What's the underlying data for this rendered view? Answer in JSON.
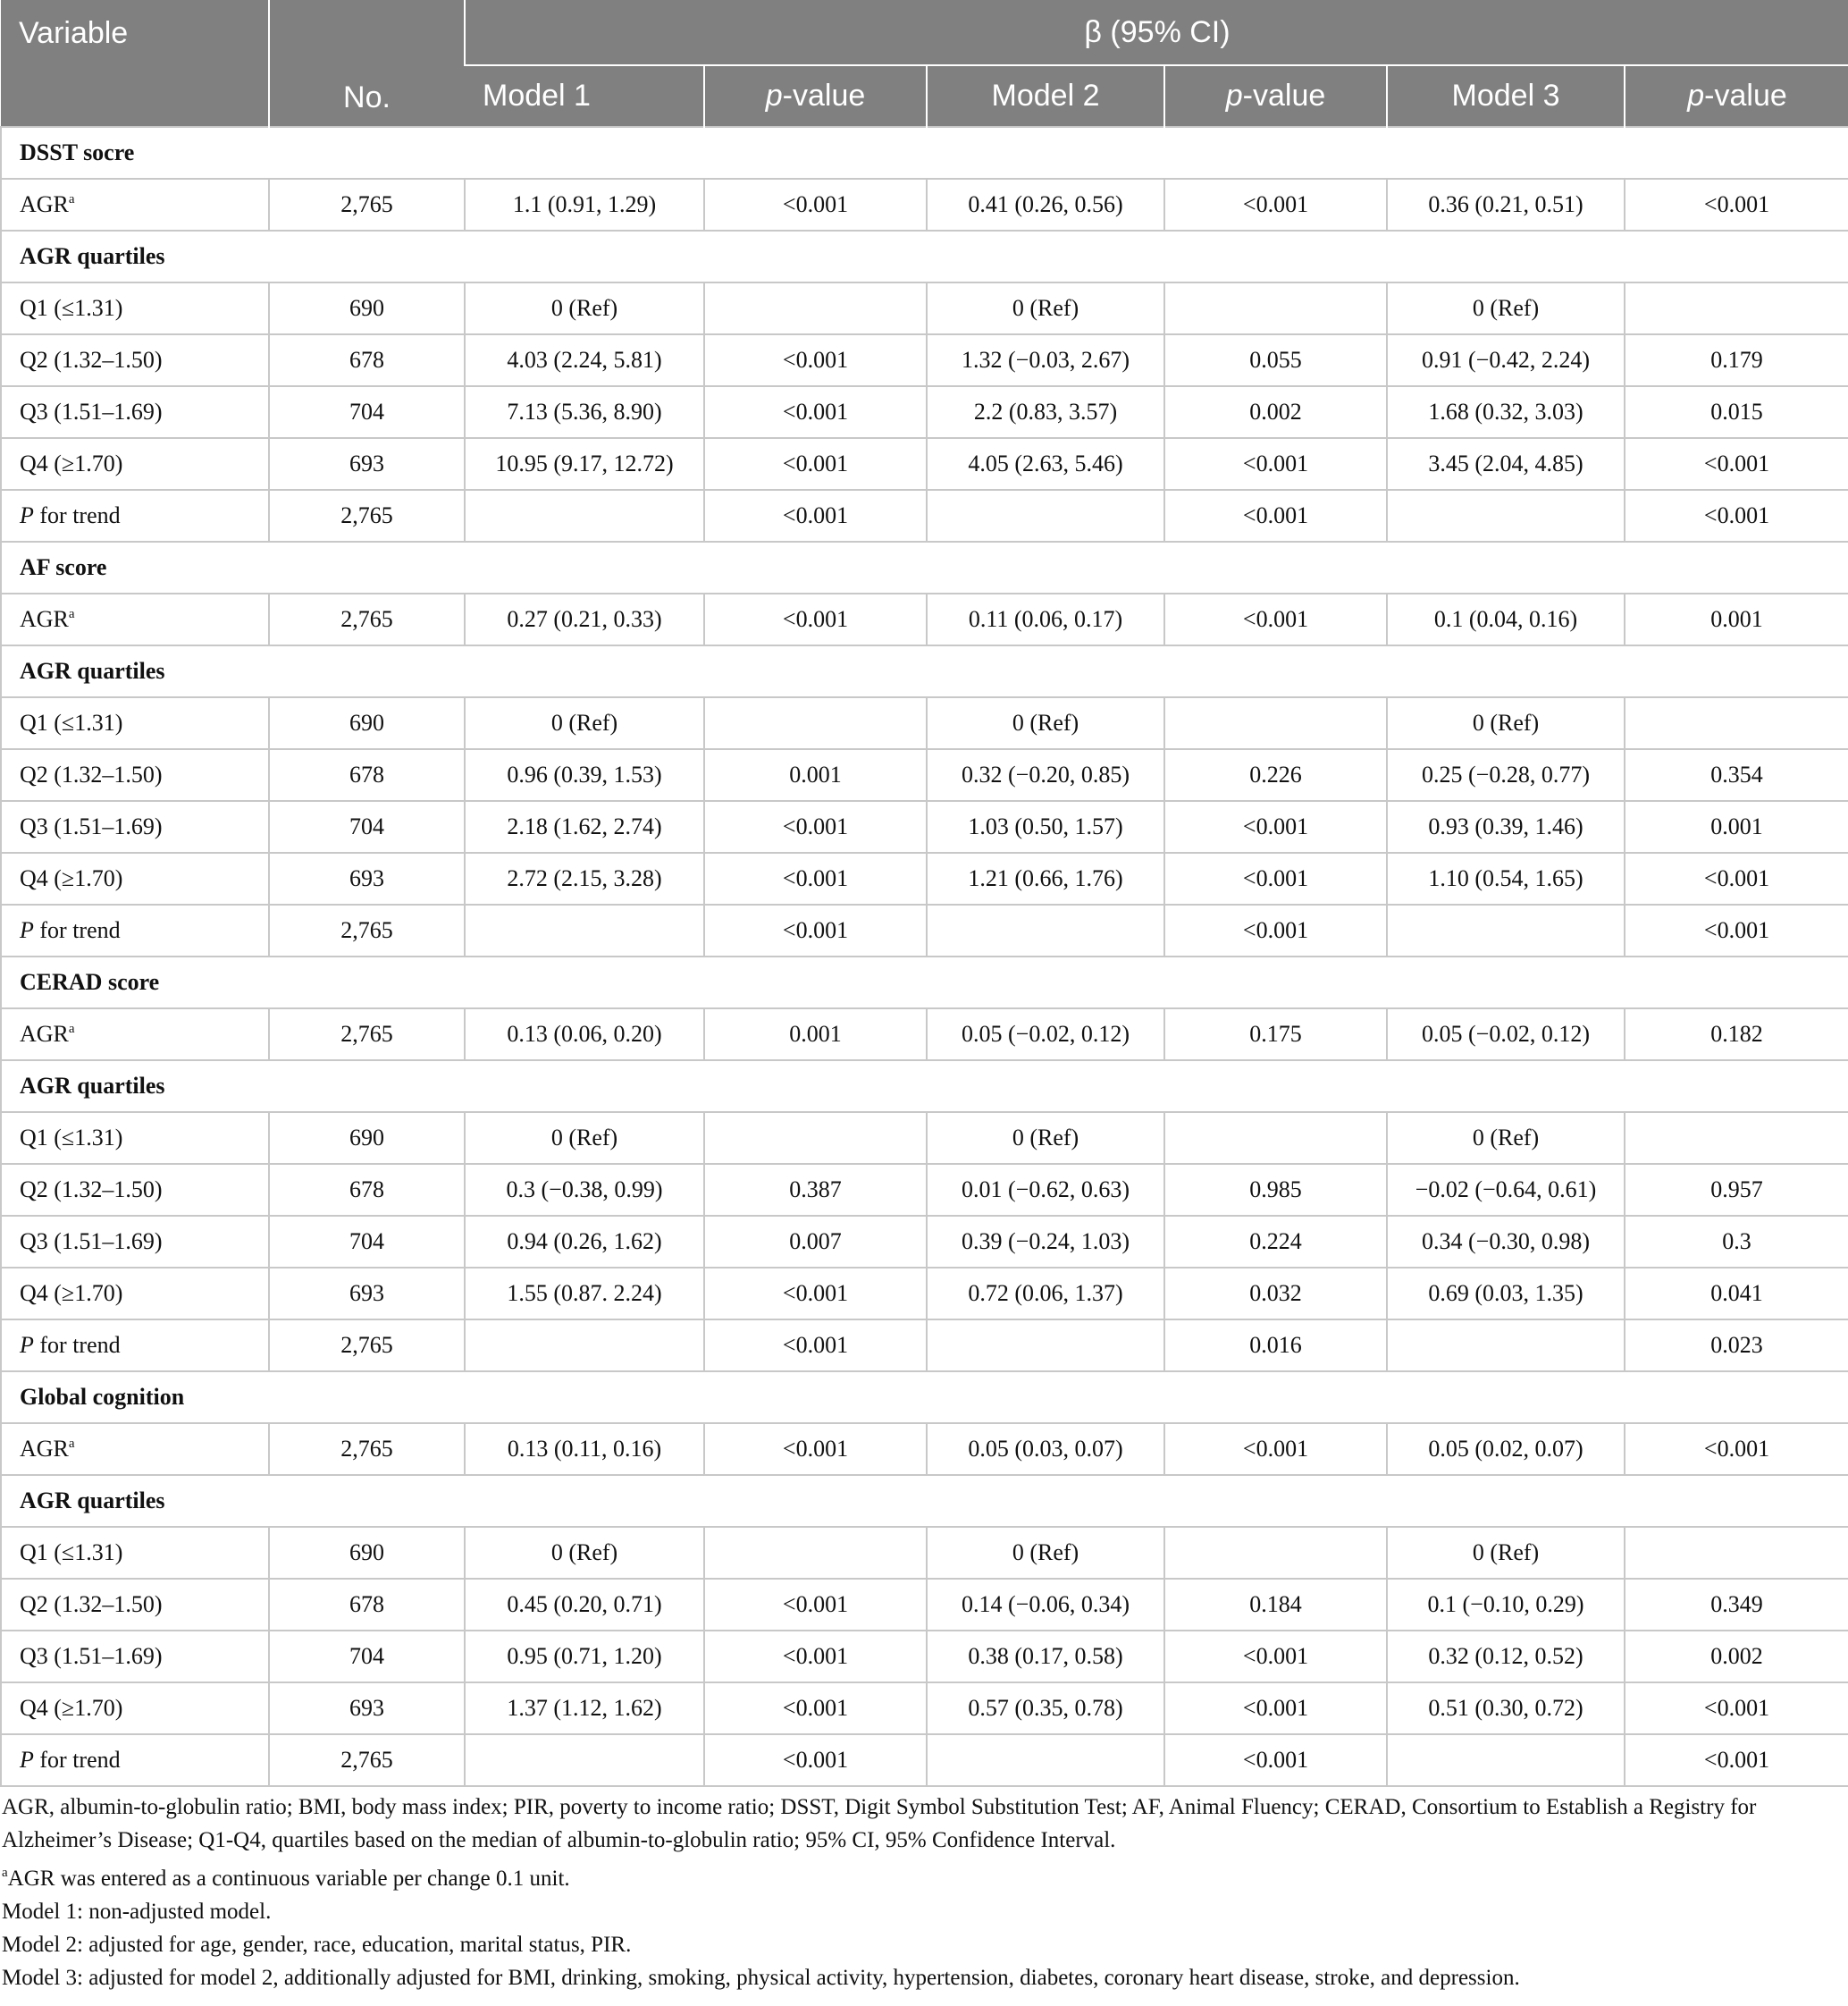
{
  "table": {
    "header": {
      "variable": "Variable",
      "group": "β (95% CI)",
      "columns": [
        {
          "text": "No.",
          "italic_first": false
        },
        {
          "text": "Model 1",
          "italic_first": false
        },
        {
          "text": "p-value",
          "italic_first": true
        },
        {
          "text": "Model 2",
          "italic_first": false
        },
        {
          "text": "p-value",
          "italic_first": true
        },
        {
          "text": "Model 3",
          "italic_first": false
        },
        {
          "text": "p-value",
          "italic_first": true
        }
      ]
    },
    "sections": [
      {
        "title": "DSST socre",
        "rows": [
          {
            "label": "AGR",
            "label_sup": "a",
            "cells": [
              "2,765",
              "1.1 (0.91, 1.29)",
              "<0.001",
              "0.41 (0.26, 0.56)",
              "<0.001",
              "0.36 (0.21, 0.51)",
              "<0.001"
            ]
          }
        ]
      },
      {
        "title": "AGR quartiles",
        "rows": [
          {
            "label": "Q1 (≤1.31)",
            "cells": [
              "690",
              "0 (Ref)",
              null,
              "0 (Ref)",
              null,
              "0 (Ref)",
              null
            ]
          },
          {
            "label": "Q2 (1.32–1.50)",
            "cells": [
              "678",
              "4.03 (2.24, 5.81)",
              "<0.001",
              "1.32 (−0.03, 2.67)",
              "0.055",
              "0.91 (−0.42, 2.24)",
              "0.179"
            ]
          },
          {
            "label": "Q3 (1.51–1.69)",
            "cells": [
              "704",
              "7.13 (5.36, 8.90)",
              "<0.001",
              "2.2 (0.83, 3.57)",
              "0.002",
              "1.68 (0.32, 3.03)",
              "0.015"
            ]
          },
          {
            "label": "Q4 (≥1.70)",
            "cells": [
              "693",
              "10.95 (9.17, 12.72)",
              "<0.001",
              "4.05 (2.63, 5.46)",
              "<0.001",
              "3.45 (2.04, 4.85)",
              "<0.001"
            ]
          },
          {
            "label": "P for trend",
            "label_italic_first": true,
            "cells": [
              "2,765",
              null,
              "<0.001",
              null,
              "<0.001",
              null,
              "<0.001"
            ]
          }
        ]
      },
      {
        "title": "AF score",
        "rows": [
          {
            "label": "AGR",
            "label_sup": "a",
            "cells": [
              "2,765",
              "0.27 (0.21, 0.33)",
              "<0.001",
              "0.11 (0.06, 0.17)",
              "<0.001",
              "0.1 (0.04, 0.16)",
              "0.001"
            ]
          }
        ]
      },
      {
        "title": "AGR quartiles",
        "rows": [
          {
            "label": "Q1 (≤1.31)",
            "cells": [
              "690",
              "0 (Ref)",
              null,
              "0 (Ref)",
              null,
              "0 (Ref)",
              null
            ]
          },
          {
            "label": "Q2 (1.32–1.50)",
            "cells": [
              "678",
              "0.96 (0.39, 1.53)",
              "0.001",
              "0.32 (−0.20, 0.85)",
              "0.226",
              "0.25 (−0.28, 0.77)",
              "0.354"
            ]
          },
          {
            "label": "Q3 (1.51–1.69)",
            "cells": [
              "704",
              "2.18 (1.62, 2.74)",
              "<0.001",
              "1.03 (0.50, 1.57)",
              "<0.001",
              "0.93 (0.39, 1.46)",
              "0.001"
            ]
          },
          {
            "label": "Q4 (≥1.70)",
            "cells": [
              "693",
              "2.72 (2.15, 3.28)",
              "<0.001",
              "1.21 (0.66, 1.76)",
              "<0.001",
              "1.10 (0.54, 1.65)",
              "<0.001"
            ]
          },
          {
            "label": "P for trend",
            "label_italic_first": true,
            "cells": [
              "2,765",
              null,
              "<0.001",
              null,
              "<0.001",
              null,
              "<0.001"
            ]
          }
        ]
      },
      {
        "title": "CERAD score",
        "rows": [
          {
            "label": "AGR",
            "label_sup": "a",
            "cells": [
              "2,765",
              "0.13 (0.06, 0.20)",
              "0.001",
              "0.05 (−0.02, 0.12)",
              "0.175",
              "0.05 (−0.02, 0.12)",
              "0.182"
            ]
          }
        ]
      },
      {
        "title": "AGR quartiles",
        "rows": [
          {
            "label": "Q1 (≤1.31)",
            "cells": [
              "690",
              "0 (Ref)",
              null,
              "0 (Ref)",
              null,
              "0 (Ref)",
              null
            ]
          },
          {
            "label": "Q2 (1.32–1.50)",
            "cells": [
              "678",
              "0.3 (−0.38, 0.99)",
              "0.387",
              "0.01 (−0.62, 0.63)",
              "0.985",
              "−0.02 (−0.64, 0.61)",
              "0.957"
            ]
          },
          {
            "label": "Q3 (1.51–1.69)",
            "cells": [
              "704",
              "0.94 (0.26, 1.62)",
              "0.007",
              "0.39 (−0.24, 1.03)",
              "0.224",
              "0.34 (−0.30, 0.98)",
              "0.3"
            ]
          },
          {
            "label": "Q4 (≥1.70)",
            "cells": [
              "693",
              "1.55 (0.87. 2.24)",
              "<0.001",
              "0.72 (0.06, 1.37)",
              "0.032",
              "0.69 (0.03, 1.35)",
              "0.041"
            ]
          },
          {
            "label": "P for trend",
            "label_italic_first": true,
            "cells": [
              "2,765",
              null,
              "<0.001",
              null,
              "0.016",
              null,
              "0.023"
            ]
          }
        ]
      },
      {
        "title": "Global cognition",
        "rows": [
          {
            "label": "AGR",
            "label_sup": "a",
            "cells": [
              "2,765",
              "0.13 (0.11, 0.16)",
              "<0.001",
              "0.05 (0.03, 0.07)",
              "<0.001",
              "0.05 (0.02, 0.07)",
              "<0.001"
            ]
          }
        ]
      },
      {
        "title": "AGR quartiles",
        "rows": [
          {
            "label": "Q1 (≤1.31)",
            "cells": [
              "690",
              "0 (Ref)",
              null,
              "0 (Ref)",
              null,
              "0 (Ref)",
              null
            ]
          },
          {
            "label": "Q2 (1.32–1.50)",
            "cells": [
              "678",
              "0.45 (0.20, 0.71)",
              "<0.001",
              "0.14 (−0.06, 0.34)",
              "0.184",
              "0.1 (−0.10, 0.29)",
              "0.349"
            ]
          },
          {
            "label": "Q3 (1.51–1.69)",
            "cells": [
              "704",
              "0.95 (0.71, 1.20)",
              "<0.001",
              "0.38 (0.17, 0.58)",
              "<0.001",
              "0.32 (0.12, 0.52)",
              "0.002"
            ]
          },
          {
            "label": "Q4 (≥1.70)",
            "cells": [
              "693",
              "1.37 (1.12, 1.62)",
              "<0.001",
              "0.57 (0.35, 0.78)",
              "<0.001",
              "0.51 (0.30, 0.72)",
              "<0.001"
            ]
          },
          {
            "label": "P for trend",
            "label_italic_first": true,
            "cells": [
              "2,765",
              null,
              "<0.001",
              null,
              "<0.001",
              null,
              "<0.001"
            ]
          }
        ]
      }
    ]
  },
  "footnotes": [
    {
      "text": "AGR, albumin-to-globulin ratio; BMI, body mass index; PIR, poverty to income ratio; DSST, Digit Symbol Substitution Test; AF, Animal Fluency; CERAD, Consortium to Establish a Registry for Alzheimer’s Disease; Q1-Q4, quartiles based on the median of albumin-to-globulin ratio; 95% CI, 95% Confidence Interval."
    },
    {
      "sup": "a",
      "text": "AGR was entered as a continuous variable per change 0.1 unit."
    },
    {
      "text": "Model 1: non-adjusted model."
    },
    {
      "text": "Model 2: adjusted for age, gender, race, education, marital status, PIR."
    },
    {
      "text": "Model 3: adjusted for model 2, additionally adjusted for BMI, drinking, smoking, physical activity, hypertension, diabetes, coronary heart disease, stroke, and depression."
    }
  ]
}
